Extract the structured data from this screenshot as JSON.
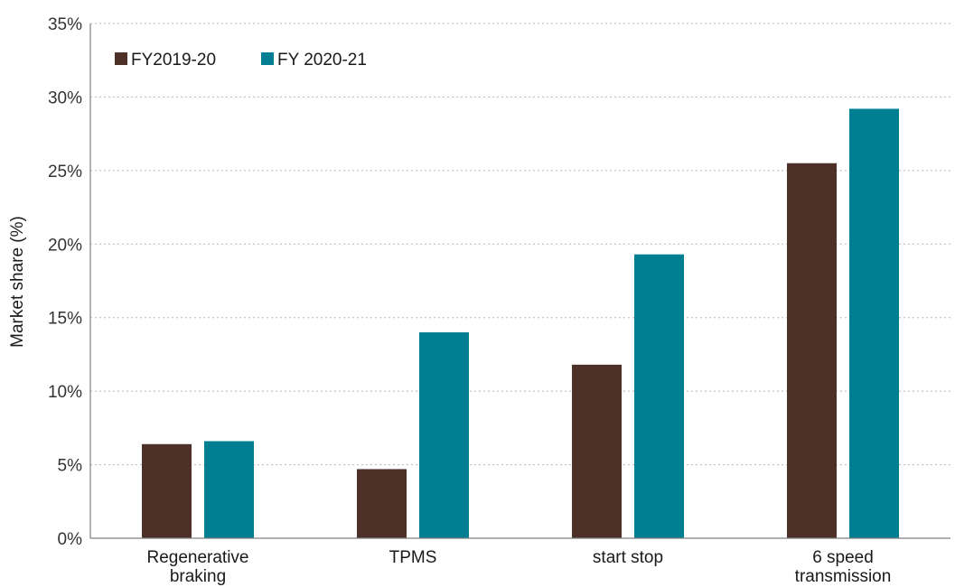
{
  "chart_data": {
    "type": "bar",
    "categories": [
      [
        "Regenerative",
        "braking"
      ],
      [
        "TPMS"
      ],
      [
        "start stop"
      ],
      [
        "6 speed",
        "transmission"
      ]
    ],
    "series": [
      {
        "name": "FY2019-20",
        "color": "#4d3128",
        "values": [
          6.4,
          4.7,
          11.8,
          25.5
        ]
      },
      {
        "name": "FY 2020-21",
        "color": "#007f93",
        "values": [
          6.6,
          14.0,
          19.3,
          29.2
        ]
      }
    ],
    "ylabel": "Market share (%)",
    "ylim": [
      0,
      35
    ],
    "yticks": [
      0,
      5,
      10,
      15,
      20,
      25,
      30,
      35
    ],
    "ytick_labels": [
      "0%",
      "5%",
      "10%",
      "15%",
      "20%",
      "25%",
      "30%",
      "35%"
    ],
    "grid": "horizontal dotted",
    "legend_position": "top-left"
  }
}
